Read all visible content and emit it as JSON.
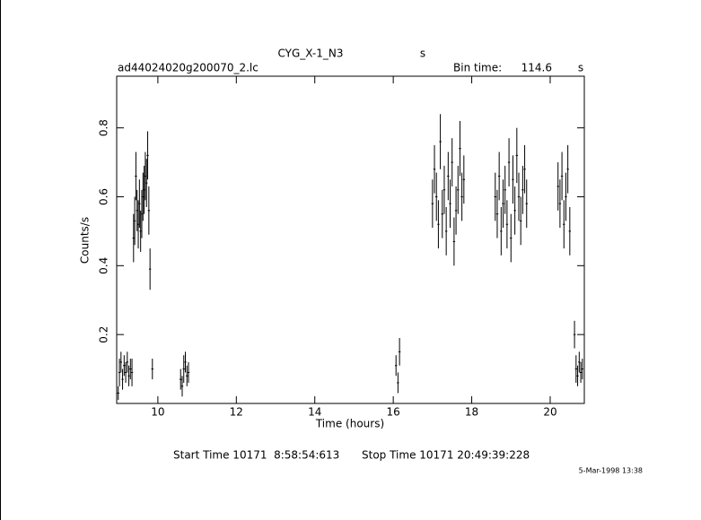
{
  "chart_data": {
    "type": "errorbar",
    "title": "CYG_X-1_N3",
    "title_unit": "s",
    "file_name": "ad44024020g200070_2.lc",
    "bin_time_label": "Bin time:",
    "bin_time": "114.6",
    "bin_time_unit": "s",
    "x_label": "Time (hours)",
    "y_label": "Counts/s",
    "start_time": "Start Time 10171  8:58:54:613",
    "stop_time": "Stop Time 10171 20:49:39:228",
    "date": "5-Mar-1998 13:38",
    "color": "#000000",
    "xlim": [
      8.95,
      20.87
    ],
    "xticks": [
      10,
      12,
      14,
      16,
      18,
      20
    ],
    "ylim": [
      0,
      0.95
    ],
    "yticks": [
      0.2,
      0.4,
      0.6,
      0.8
    ],
    "x": [
      8.99,
      9.02,
      9.06,
      9.1,
      9.14,
      9.18,
      9.22,
      9.26,
      9.3,
      9.34,
      9.38,
      9.41,
      9.44,
      9.47,
      9.5,
      9.53,
      9.56,
      9.59,
      9.62,
      9.65,
      9.68,
      9.71,
      9.74,
      9.77,
      9.8,
      9.86,
      10.58,
      10.62,
      10.66,
      10.7,
      10.74,
      10.78,
      16.07,
      16.12,
      16.16,
      17.0,
      17.05,
      17.1,
      17.15,
      17.2,
      17.25,
      17.3,
      17.35,
      17.4,
      17.45,
      17.5,
      17.55,
      17.6,
      17.65,
      17.7,
      17.75,
      17.8,
      18.6,
      18.65,
      18.7,
      18.75,
      18.8,
      18.85,
      18.9,
      18.95,
      19.0,
      19.05,
      19.1,
      19.15,
      19.2,
      19.25,
      19.3,
      19.35,
      19.4,
      20.2,
      20.25,
      20.3,
      20.35,
      20.4,
      20.45,
      20.5,
      20.62,
      20.66,
      20.7,
      20.74,
      20.78,
      20.82
    ],
    "values": [
      0.03,
      0.09,
      0.12,
      0.07,
      0.11,
      0.09,
      0.12,
      0.08,
      0.1,
      0.09,
      0.48,
      0.53,
      0.66,
      0.56,
      0.52,
      0.58,
      0.5,
      0.55,
      0.6,
      0.62,
      0.66,
      0.64,
      0.72,
      0.56,
      0.39,
      0.1,
      0.07,
      0.05,
      0.1,
      0.12,
      0.08,
      0.09,
      0.11,
      0.06,
      0.15,
      0.58,
      0.68,
      0.6,
      0.52,
      0.76,
      0.55,
      0.62,
      0.5,
      0.66,
      0.58,
      0.7,
      0.47,
      0.56,
      0.62,
      0.74,
      0.6,
      0.65,
      0.6,
      0.55,
      0.66,
      0.5,
      0.58,
      0.62,
      0.52,
      0.7,
      0.48,
      0.65,
      0.56,
      0.72,
      0.6,
      0.53,
      0.62,
      0.68,
      0.58,
      0.63,
      0.58,
      0.66,
      0.52,
      0.6,
      0.68,
      0.5,
      0.2,
      0.1,
      0.08,
      0.12,
      0.09,
      0.1
    ],
    "errors": [
      0.02,
      0.04,
      0.03,
      0.03,
      0.03,
      0.03,
      0.03,
      0.03,
      0.03,
      0.04,
      0.07,
      0.07,
      0.07,
      0.06,
      0.07,
      0.07,
      0.06,
      0.07,
      0.07,
      0.07,
      0.07,
      0.07,
      0.07,
      0.07,
      0.06,
      0.03,
      0.03,
      0.03,
      0.04,
      0.03,
      0.03,
      0.03,
      0.03,
      0.03,
      0.04,
      0.07,
      0.07,
      0.07,
      0.07,
      0.08,
      0.07,
      0.07,
      0.07,
      0.07,
      0.07,
      0.07,
      0.07,
      0.07,
      0.07,
      0.08,
      0.07,
      0.07,
      0.07,
      0.07,
      0.07,
      0.07,
      0.07,
      0.07,
      0.07,
      0.07,
      0.07,
      0.07,
      0.07,
      0.08,
      0.07,
      0.07,
      0.07,
      0.07,
      0.07,
      0.07,
      0.07,
      0.07,
      0.07,
      0.07,
      0.07,
      0.07,
      0.04,
      0.04,
      0.03,
      0.03,
      0.03,
      0.03
    ]
  }
}
